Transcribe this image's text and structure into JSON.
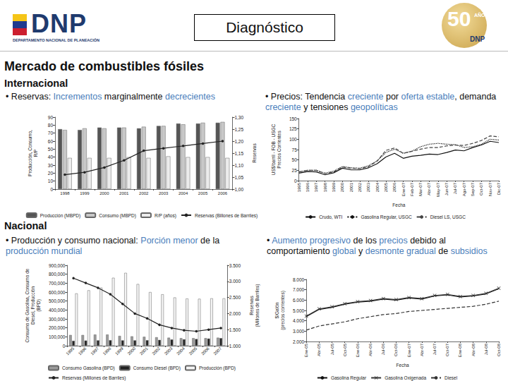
{
  "header": {
    "logo": "DNP",
    "logo_subtitle": "DEPARTAMENTO NACIONAL DE PLANEACIÓN",
    "title": "Diagnóstico",
    "badge": "50",
    "badge_text": "AÑOS",
    "badge_logo": "DNP"
  },
  "heading": "Mercado de combustibles fósiles",
  "bullet": "•",
  "sections": [
    {
      "title": "Internacional",
      "bullets": [
        [
          {
            "text": "Reservas: ",
            "highlight": false
          },
          {
            "text": "Incrementos",
            "highlight": true
          },
          {
            "text": " marginalmente ",
            "highlight": false
          },
          {
            "text": "decrecientes",
            "highlight": true
          }
        ],
        [
          {
            "text": "Precios: Tendencia ",
            "highlight": false
          },
          {
            "text": "creciente",
            "highlight": true
          },
          {
            "text": " por ",
            "highlight": false
          },
          {
            "text": "oferta estable",
            "highlight": true
          },
          {
            "text": ", demanda ",
            "highlight": false
          },
          {
            "text": "creciente",
            "highlight": true
          },
          {
            "text": " y tensiones ",
            "highlight": false
          },
          {
            "text": "geopolíticas",
            "highlight": true
          }
        ]
      ]
    },
    {
      "title": "Nacional",
      "bullets": [
        [
          {
            "text": "Producción y consumo nacional: ",
            "highlight": false
          },
          {
            "text": "Porción menor",
            "highlight": true
          },
          {
            "text": " de la ",
            "highlight": false
          },
          {
            "text": "producción mundial",
            "highlight": true
          }
        ],
        [
          {
            "text": "Aumento progresivo",
            "highlight": true
          },
          {
            "text": " de los ",
            "highlight": false
          },
          {
            "text": "precios",
            "highlight": true
          },
          {
            "text": " debido al comportamiento ",
            "highlight": false
          },
          {
            "text": "global",
            "highlight": true
          },
          {
            "text": " y ",
            "highlight": false
          },
          {
            "text": "desmonte gradual",
            "highlight": true
          },
          {
            "text": " de ",
            "highlight": false
          },
          {
            "text": "subsidios",
            "highlight": true
          }
        ]
      ]
    }
  ],
  "chart_data": [
    {
      "type": "bar",
      "categories": [
        "1998",
        "1999",
        "2000",
        "2001",
        "2002",
        "2003",
        "2004",
        "2005",
        "2006"
      ],
      "series": [
        {
          "name": "Producción (MBPD)",
          "color": "#555555",
          "values": [
            75,
            74,
            77,
            77,
            76,
            79,
            82,
            82,
            83
          ]
        },
        {
          "name": "Consumo (MBPD)",
          "color": "#c8c8c8",
          "values": [
            74,
            76,
            76,
            77,
            78,
            79,
            81,
            83,
            84
          ]
        },
        {
          "name": "R/P (años)",
          "color": "#ececec",
          "values": [
            39,
            39,
            39,
            40,
            39,
            41,
            40,
            40,
            39
          ]
        },
        {
          "name": "Reservas (Billones de Barriles)",
          "type": "line",
          "color": "#222222",
          "marker": "circle",
          "line_style": "solid",
          "axis": "y2",
          "values": [
            1.06,
            1.07,
            1.09,
            1.12,
            1.16,
            1.17,
            1.18,
            1.19,
            1.2
          ]
        }
      ],
      "ylabel": "Producción, Consumo,\nR/P",
      "y2label": "Reservas",
      "ylim": [
        0,
        90
      ],
      "yticks": [
        0,
        10,
        20,
        30,
        40,
        50,
        60,
        70,
        80,
        90
      ],
      "y2lim": [
        1,
        1.3
      ],
      "y2ticks": [
        {
          "value": 1,
          "label": "1,00"
        },
        {
          "value": 1.05,
          "label": "1,05"
        },
        {
          "value": 1.1,
          "label": "1,10"
        },
        {
          "value": 1.15,
          "label": "1,15"
        },
        {
          "value": 1.2,
          "label": "1,20"
        },
        {
          "value": 1.25,
          "label": "1,25"
        },
        {
          "value": 1.3,
          "label": "1,30"
        }
      ],
      "grid": false,
      "legend": "bottom"
    },
    {
      "type": "line",
      "categories": [
        "1995",
        "1996",
        "1997",
        "1998",
        "1999",
        "2000",
        "2001",
        "2002",
        "2003",
        "2004",
        "2005",
        "2006",
        "Ene-07",
        "Feb-07",
        "Mar-07",
        "Abr-07",
        "May-07",
        "Jun-07",
        "Jul-07",
        "Ago-07",
        "Sep-07",
        "Oct-07",
        "Nov-07",
        "Dic-07"
      ],
      "series": [
        {
          "name": "Crudo, WTI",
          "color": "#111111",
          "line_style": "solid",
          "marker": "none",
          "values": [
            18,
            22,
            21,
            14,
            19,
            30,
            26,
            26,
            31,
            41,
            57,
            66,
            54,
            59,
            61,
            64,
            63,
            68,
            74,
            72,
            80,
            86,
            95,
            92
          ]
        },
        {
          "name": "Gasolina Regular, USGC",
          "color": "#111111",
          "line_style": "dotted",
          "marker": "none",
          "values": [
            21,
            25,
            25,
            18,
            23,
            34,
            31,
            30,
            36,
            48,
            68,
            76,
            66,
            71,
            82,
            88,
            90,
            88,
            87,
            80,
            82,
            88,
            100,
            98
          ]
        },
        {
          "name": "Diesel LS, USGC",
          "color": "#444444",
          "line_style": "dashed",
          "marker": "none",
          "values": [
            21,
            25,
            25,
            17,
            21,
            33,
            30,
            29,
            34,
            47,
            73,
            79,
            66,
            71,
            76,
            80,
            80,
            84,
            86,
            85,
            90,
            97,
            108,
            106
          ]
        }
      ],
      "xlabel": "Fecha",
      "ylabel": "US$/barril - FOB - USGC\nPrecios Corrientes",
      "ylim": [
        0,
        150
      ],
      "yticks": [
        0,
        25,
        50,
        75,
        100,
        125,
        150
      ],
      "grid": false,
      "legend": "bottom"
    },
    {
      "type": "bar",
      "categories": [
        "1995",
        "1996",
        "1997",
        "1998",
        "1999",
        "2000",
        "2001",
        "2002",
        "2003",
        "2004",
        "2005",
        "2006",
        "2007"
      ],
      "series": [
        {
          "name": "Consumo Gasolina (BPD)",
          "color": "#9a9a9a",
          "values": [
            120000,
            120000,
            125000,
            125000,
            110000,
            105000,
            100000,
            95000,
            90000,
            85000,
            85000,
            85000,
            90000
          ]
        },
        {
          "name": "Consumo Diesel (BPD)",
          "color": "#222222",
          "values": [
            55000,
            58000,
            60000,
            62000,
            60000,
            60000,
            62000,
            65000,
            70000,
            72000,
            75000,
            80000,
            85000
          ]
        },
        {
          "name": "Producción (BPD)",
          "color": "#f4f4f4",
          "values": [
            585000,
            620000,
            650000,
            760000,
            815000,
            690000,
            600000,
            575000,
            540000,
            528000,
            525000,
            530000,
            530000
          ]
        },
        {
          "name": "Reservas (Millones de Barriles)",
          "type": "line",
          "color": "#222222",
          "marker": "circle",
          "line_style": "solid",
          "axis": "y2",
          "values": [
            3100,
            2950,
            2800,
            2600,
            2300,
            2000,
            1850,
            1650,
            1550,
            1480,
            1450,
            1500,
            1550
          ]
        }
      ],
      "ylabel": "Consumo de Gasolina, Consumo de\nDiesel, Producción\n(BPD)",
      "y2label": "Reservas\n(Millones de Barriles)",
      "ylim": [
        0,
        900000
      ],
      "yticks": [
        0,
        {
          "value": 100000,
          "label": "100,000"
        },
        {
          "value": 200000,
          "label": "200,000"
        },
        {
          "value": 300000,
          "label": "300,000"
        },
        {
          "value": 400000,
          "label": "400,000"
        },
        {
          "value": 500000,
          "label": "500,000"
        },
        {
          "value": 600000,
          "label": "600,000"
        },
        {
          "value": 700000,
          "label": "700,000"
        },
        {
          "value": 800000,
          "label": "800,000"
        },
        {
          "value": 900000,
          "label": "900,000"
        }
      ],
      "y2lim": [
        1000,
        3500
      ],
      "y2ticks": [
        {
          "value": 1000,
          "label": "1.000"
        },
        {
          "value": 1500,
          "label": "1.500"
        },
        {
          "value": 2000,
          "label": "2.000"
        },
        {
          "value": 2500,
          "label": "2.500"
        },
        {
          "value": 3000,
          "label": "3.000"
        },
        {
          "value": 3500,
          "label": "3.500"
        }
      ],
      "grid": false,
      "legend": "bottom"
    },
    {
      "type": "line",
      "categories": [
        "Ene-05",
        "Abr-05",
        "Jul-05",
        "Oct-05",
        "Ene-06",
        "Abr-06",
        "Jul-06",
        "Oct-06",
        "Ene-07",
        "Abr-07",
        "Jul-07",
        "Oct-07",
        "Ene-08",
        "Abr-08",
        "Jul-08",
        "Oct-08"
      ],
      "series": [
        {
          "name": "Gasolina Regular",
          "color": "#111111",
          "line_style": "solid",
          "marker": "none",
          "values": [
            4400,
            5100,
            5300,
            5600,
            5800,
            5900,
            6100,
            6000,
            6200,
            6100,
            6400,
            6500,
            6300,
            6400,
            6600,
            7100
          ]
        },
        {
          "name": "Gasolina Oxigenada",
          "color": "#333333",
          "line_style": "solid",
          "marker": "x",
          "values": [
            4450,
            5150,
            5350,
            5650,
            5850,
            5950,
            6150,
            6050,
            6250,
            6150,
            6450,
            6550,
            6350,
            6450,
            6650,
            7150
          ]
        },
        {
          "name": "Diesel",
          "color": "#333333",
          "line_style": "dashed",
          "marker": "none",
          "values": [
            3100,
            3500,
            3700,
            3900,
            4200,
            4400,
            4600,
            4700,
            4900,
            5000,
            5100,
            5200,
            5300,
            5400,
            5600,
            5900
          ]
        }
      ],
      "xlabel": "Fecha",
      "ylabel": "$/Galón\n(precios corrientes)",
      "ylim": [
        2000,
        8000
      ],
      "yticks": [
        {
          "value": 2000,
          "label": "2.000"
        },
        {
          "value": 3000,
          "label": "3.000"
        },
        {
          "value": 4000,
          "label": "4.000"
        },
        {
          "value": 5000,
          "label": "5.000"
        },
        {
          "value": 6000,
          "label": "6.000"
        },
        {
          "value": 7000,
          "label": "7.000"
        },
        {
          "value": 8000,
          "label": "8.000"
        }
      ],
      "grid": false,
      "legend": "bottom"
    }
  ]
}
